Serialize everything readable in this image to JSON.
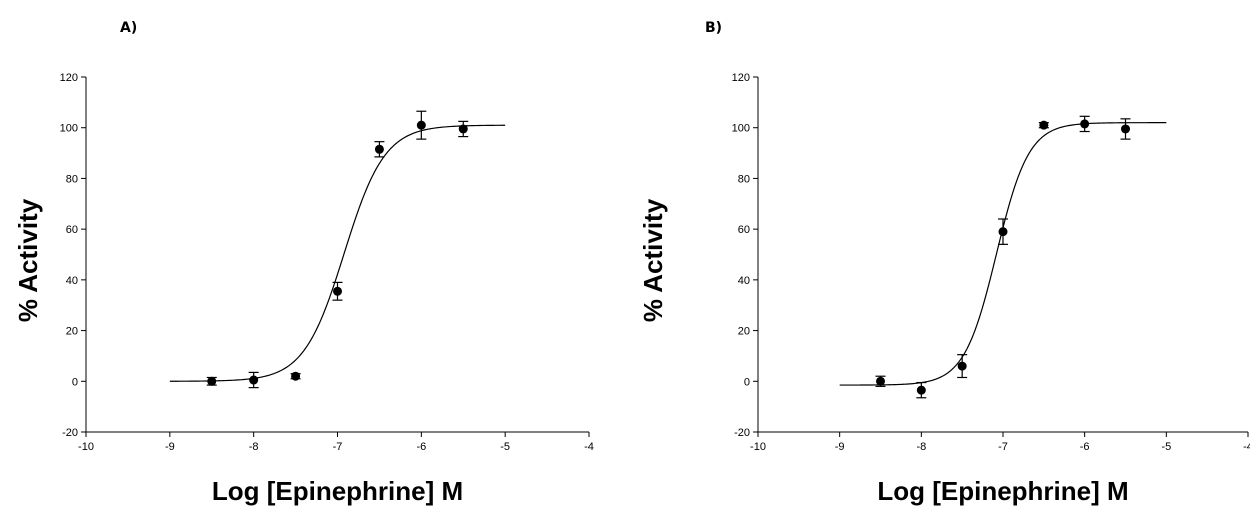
{
  "chart_data": [
    {
      "panel_label": "A)",
      "type": "scatter",
      "xlabel": "Log [Epinephrine] M",
      "ylabel": "% Activity",
      "xlim": [
        -10,
        -4
      ],
      "ylim": [
        -20,
        120
      ],
      "xticks": [
        -10,
        -9,
        -8,
        -7,
        -6,
        -5,
        -4
      ],
      "yticks": [
        -20,
        0,
        20,
        40,
        60,
        80,
        100,
        120
      ],
      "grid": false,
      "points": [
        {
          "x": -8.5,
          "y": 0,
          "err": 1.5
        },
        {
          "x": -8.0,
          "y": 0.5,
          "err": 3
        },
        {
          "x": -7.5,
          "y": 2,
          "err": 1
        },
        {
          "x": -7.0,
          "y": 35.5,
          "err": 3.5
        },
        {
          "x": -6.5,
          "y": 91.5,
          "err": 3
        },
        {
          "x": -6.0,
          "y": 101,
          "err": 5.5
        },
        {
          "x": -5.5,
          "y": 99.5,
          "err": 3
        }
      ],
      "fit": {
        "bottom": 0,
        "top": 101,
        "logEC50": -6.92,
        "hill": 1.8,
        "x_range": [
          -9,
          -5
        ]
      }
    },
    {
      "panel_label": "B)",
      "type": "scatter",
      "xlabel": "Log [Epinephrine] M",
      "ylabel": "% Activity",
      "xlim": [
        -10,
        -4
      ],
      "ylim": [
        -20,
        120
      ],
      "xticks": [
        -10,
        -9,
        -8,
        -7,
        -6,
        -5,
        -4
      ],
      "yticks": [
        -20,
        0,
        20,
        40,
        60,
        80,
        100,
        120
      ],
      "grid": false,
      "points": [
        {
          "x": -8.5,
          "y": 0,
          "err": 2
        },
        {
          "x": -8.0,
          "y": -3.5,
          "err": 3
        },
        {
          "x": -7.5,
          "y": 6,
          "err": 4.5
        },
        {
          "x": -7.0,
          "y": 59,
          "err": 5
        },
        {
          "x": -6.5,
          "y": 101,
          "err": 1
        },
        {
          "x": -6.0,
          "y": 101.5,
          "err": 3
        },
        {
          "x": -5.5,
          "y": 99.5,
          "err": 4
        }
      ],
      "fit": {
        "bottom": -1.5,
        "top": 102,
        "logEC50": -7.08,
        "hill": 2.2,
        "x_range": [
          -9,
          -5
        ]
      }
    }
  ]
}
